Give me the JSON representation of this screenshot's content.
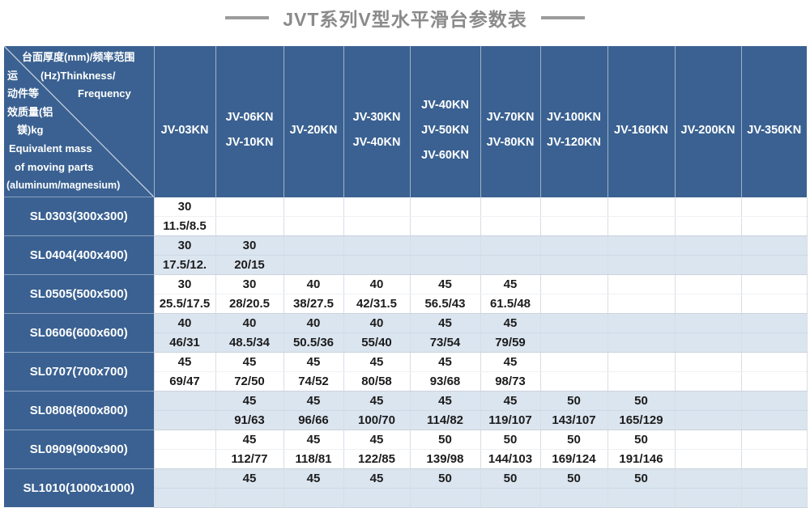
{
  "title": "JVT系列V型水平滑台参数表",
  "colors": {
    "header_blue": "#3a6191",
    "stripe_blue": "#dbe5f0",
    "title_gray": "#8a8a8a",
    "grid_line": "#d8dde5",
    "data_text": "#1c1c1c"
  },
  "chart_data": {
    "type": "table",
    "title": "JVT系列V型水平滑台参数表",
    "corner": {
      "rows": [
        {
          "left": "",
          "right": "台面厚度(mm)/频率范围"
        },
        {
          "left": "运",
          "right": "(Hz)Thinkness/"
        },
        {
          "left": "动件等",
          "right": "Frequency"
        },
        {
          "left": "效质量(铝",
          "right": ""
        },
        {
          "left": "镁)kg",
          "right": ""
        },
        {
          "left": "Equivalent mass",
          "right": ""
        },
        {
          "left": "of moving parts",
          "right": ""
        },
        {
          "left": "(aluminum/magnesium)",
          "right": ""
        }
      ]
    },
    "columns": [
      {
        "labels": [
          "JV-03KN"
        ]
      },
      {
        "labels": [
          "JV-06KN",
          "JV-10KN"
        ]
      },
      {
        "labels": [
          "JV-20KN"
        ]
      },
      {
        "labels": [
          "JV-30KN",
          "JV-40KN"
        ]
      },
      {
        "labels": [
          "JV-40KN",
          "JV-50KN",
          "JV-60KN"
        ]
      },
      {
        "labels": [
          "JV-70KN",
          "JV-80KN"
        ]
      },
      {
        "labels": [
          "JV-100KN",
          "JV-120KN"
        ]
      },
      {
        "labels": [
          "JV-160KN"
        ]
      },
      {
        "labels": [
          "JV-200KN"
        ]
      },
      {
        "labels": [
          "JV-350KN"
        ]
      }
    ],
    "rows": [
      {
        "label": "SL0303(300x300)",
        "thickness": [
          "30",
          "",
          "",
          "",
          "",
          "",
          "",
          "",
          "",
          ""
        ],
        "mass": [
          "11.5/8.5",
          "",
          "",
          "",
          "",
          "",
          "",
          "",
          "",
          ""
        ]
      },
      {
        "label": "SL0404(400x400)",
        "thickness": [
          "30",
          "30",
          "",
          "",
          "",
          "",
          "",
          "",
          "",
          ""
        ],
        "mass": [
          "17.5/12.",
          "20/15",
          "",
          "",
          "",
          "",
          "",
          "",
          "",
          ""
        ]
      },
      {
        "label": "SL0505(500x500)",
        "thickness": [
          "30",
          "30",
          "40",
          "40",
          "45",
          "45",
          "",
          "",
          "",
          ""
        ],
        "mass": [
          "25.5/17.5",
          "28/20.5",
          "38/27.5",
          "42/31.5",
          "56.5/43",
          "61.5/48",
          "",
          "",
          "",
          ""
        ]
      },
      {
        "label": "SL0606(600x600)",
        "thickness": [
          "40",
          "40",
          "40",
          "40",
          "45",
          "45",
          "",
          "",
          "",
          ""
        ],
        "mass": [
          "46/31",
          "48.5/34",
          "50.5/36",
          "55/40",
          "73/54",
          "79/59",
          "",
          "",
          "",
          ""
        ]
      },
      {
        "label": "SL0707(700x700)",
        "thickness": [
          "45",
          "45",
          "45",
          "45",
          "45",
          "45",
          "",
          "",
          "",
          ""
        ],
        "mass": [
          "69/47",
          "72/50",
          "74/52",
          "80/58",
          "93/68",
          "98/73",
          "",
          "",
          "",
          ""
        ]
      },
      {
        "label": "SL0808(800x800)",
        "thickness": [
          "",
          "45",
          "45",
          "45",
          "45",
          "45",
          "50",
          "50",
          "",
          ""
        ],
        "mass": [
          "",
          "91/63",
          "96/66",
          "100/70",
          "114/82",
          "119/107",
          "143/107",
          "165/129",
          "",
          ""
        ]
      },
      {
        "label": "SL0909(900x900)",
        "thickness": [
          "",
          "45",
          "45",
          "45",
          "50",
          "50",
          "50",
          "50",
          "",
          ""
        ],
        "mass": [
          "",
          "112/77",
          "118/81",
          "122/85",
          "139/98",
          "144/103",
          "169/124",
          "191/146",
          "",
          ""
        ]
      },
      {
        "label": "SL1010(1000x1000)",
        "thickness": [
          "",
          "45",
          "45",
          "45",
          "50",
          "50",
          "50",
          "50",
          "",
          ""
        ],
        "mass": [
          "",
          "",
          "",
          "",
          "",
          "",
          "",
          "",
          "",
          ""
        ]
      }
    ]
  }
}
